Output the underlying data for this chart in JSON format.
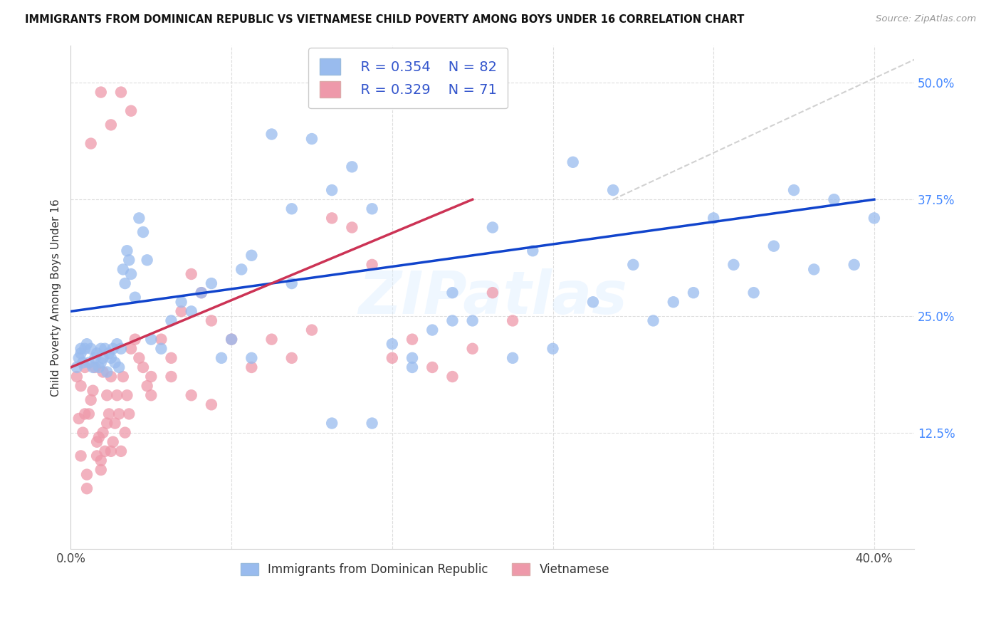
{
  "title": "IMMIGRANTS FROM DOMINICAN REPUBLIC VS VIETNAMESE CHILD POVERTY AMONG BOYS UNDER 16 CORRELATION CHART",
  "source": "Source: ZipAtlas.com",
  "ylabel": "Child Poverty Among Boys Under 16",
  "xlim": [
    0.0,
    0.42
  ],
  "ylim": [
    0.0,
    0.54
  ],
  "ytick_positions": [
    0.0,
    0.125,
    0.25,
    0.375,
    0.5
  ],
  "ytick_labels_right": [
    "",
    "12.5%",
    "25.0%",
    "37.5%",
    "50.0%"
  ],
  "xtick_positions": [
    0.0,
    0.08,
    0.16,
    0.24,
    0.32,
    0.4
  ],
  "xtick_labels": [
    "0.0%",
    "",
    "",
    "",
    "",
    "40.0%"
  ],
  "legend_r1": "R = 0.354",
  "legend_n1": "N = 82",
  "legend_r2": "R = 0.329",
  "legend_n2": "N = 71",
  "color_blue": "#99BBEE",
  "color_pink": "#EE99AA",
  "color_blue_line": "#1144CC",
  "color_pink_line": "#CC3355",
  "color_grid": "#DDDDDD",
  "color_dashed": "#CCCCCC",
  "watermark": "ZIPatlas",
  "label_blue": "Immigrants from Dominican Republic",
  "label_pink": "Vietnamese",
  "blue_line_x0": 0.0,
  "blue_line_y0": 0.255,
  "blue_line_x1": 0.4,
  "blue_line_y1": 0.375,
  "pink_line_x0": 0.0,
  "pink_line_y0": 0.195,
  "pink_line_x1": 0.2,
  "pink_line_y1": 0.375,
  "dashed_line_x0": 0.27,
  "dashed_line_y0": 0.375,
  "dashed_line_x1": 0.42,
  "dashed_line_y1": 0.525,
  "blue_x": [
    0.003,
    0.004,
    0.005,
    0.005,
    0.006,
    0.007,
    0.008,
    0.009,
    0.01,
    0.011,
    0.012,
    0.013,
    0.014,
    0.015,
    0.015,
    0.016,
    0.017,
    0.018,
    0.019,
    0.02,
    0.021,
    0.022,
    0.023,
    0.024,
    0.025,
    0.026,
    0.027,
    0.028,
    0.029,
    0.03,
    0.032,
    0.034,
    0.036,
    0.038,
    0.04,
    0.045,
    0.05,
    0.055,
    0.06,
    0.065,
    0.07,
    0.075,
    0.08,
    0.085,
    0.09,
    0.1,
    0.11,
    0.12,
    0.13,
    0.14,
    0.15,
    0.16,
    0.17,
    0.18,
    0.19,
    0.2,
    0.22,
    0.24,
    0.26,
    0.28,
    0.3,
    0.32,
    0.33,
    0.34,
    0.35,
    0.36,
    0.37,
    0.38,
    0.39,
    0.4,
    0.29,
    0.31,
    0.27,
    0.25,
    0.23,
    0.21,
    0.19,
    0.17,
    0.15,
    0.13,
    0.11,
    0.09
  ],
  "blue_y": [
    0.195,
    0.205,
    0.21,
    0.215,
    0.2,
    0.215,
    0.22,
    0.2,
    0.215,
    0.195,
    0.205,
    0.21,
    0.195,
    0.2,
    0.215,
    0.205,
    0.215,
    0.19,
    0.21,
    0.205,
    0.215,
    0.2,
    0.22,
    0.195,
    0.215,
    0.3,
    0.285,
    0.32,
    0.31,
    0.295,
    0.27,
    0.355,
    0.34,
    0.31,
    0.225,
    0.215,
    0.245,
    0.265,
    0.255,
    0.275,
    0.285,
    0.205,
    0.225,
    0.3,
    0.315,
    0.445,
    0.365,
    0.44,
    0.385,
    0.41,
    0.365,
    0.22,
    0.195,
    0.235,
    0.275,
    0.245,
    0.205,
    0.215,
    0.265,
    0.305,
    0.265,
    0.355,
    0.305,
    0.275,
    0.325,
    0.385,
    0.3,
    0.375,
    0.305,
    0.355,
    0.245,
    0.275,
    0.385,
    0.415,
    0.32,
    0.345,
    0.245,
    0.205,
    0.135,
    0.135,
    0.285,
    0.205
  ],
  "pink_x": [
    0.003,
    0.004,
    0.005,
    0.005,
    0.006,
    0.007,
    0.007,
    0.008,
    0.009,
    0.01,
    0.011,
    0.012,
    0.013,
    0.013,
    0.014,
    0.015,
    0.015,
    0.016,
    0.016,
    0.017,
    0.018,
    0.018,
    0.019,
    0.02,
    0.02,
    0.021,
    0.022,
    0.023,
    0.024,
    0.025,
    0.026,
    0.027,
    0.028,
    0.029,
    0.03,
    0.032,
    0.034,
    0.036,
    0.038,
    0.04,
    0.045,
    0.05,
    0.055,
    0.06,
    0.065,
    0.07,
    0.08,
    0.09,
    0.1,
    0.11,
    0.12,
    0.13,
    0.14,
    0.15,
    0.16,
    0.17,
    0.18,
    0.19,
    0.2,
    0.21,
    0.22,
    0.04,
    0.05,
    0.06,
    0.07,
    0.03,
    0.025,
    0.02,
    0.015,
    0.01,
    0.008
  ],
  "pink_y": [
    0.185,
    0.14,
    0.175,
    0.1,
    0.125,
    0.145,
    0.195,
    0.08,
    0.145,
    0.16,
    0.17,
    0.195,
    0.115,
    0.1,
    0.12,
    0.095,
    0.085,
    0.19,
    0.125,
    0.105,
    0.135,
    0.165,
    0.145,
    0.105,
    0.185,
    0.115,
    0.135,
    0.165,
    0.145,
    0.105,
    0.185,
    0.125,
    0.165,
    0.145,
    0.215,
    0.225,
    0.205,
    0.195,
    0.175,
    0.185,
    0.225,
    0.205,
    0.255,
    0.295,
    0.275,
    0.245,
    0.225,
    0.195,
    0.225,
    0.205,
    0.235,
    0.355,
    0.345,
    0.305,
    0.205,
    0.225,
    0.195,
    0.185,
    0.215,
    0.275,
    0.245,
    0.165,
    0.185,
    0.165,
    0.155,
    0.47,
    0.49,
    0.455,
    0.49,
    0.435,
    0.065
  ]
}
